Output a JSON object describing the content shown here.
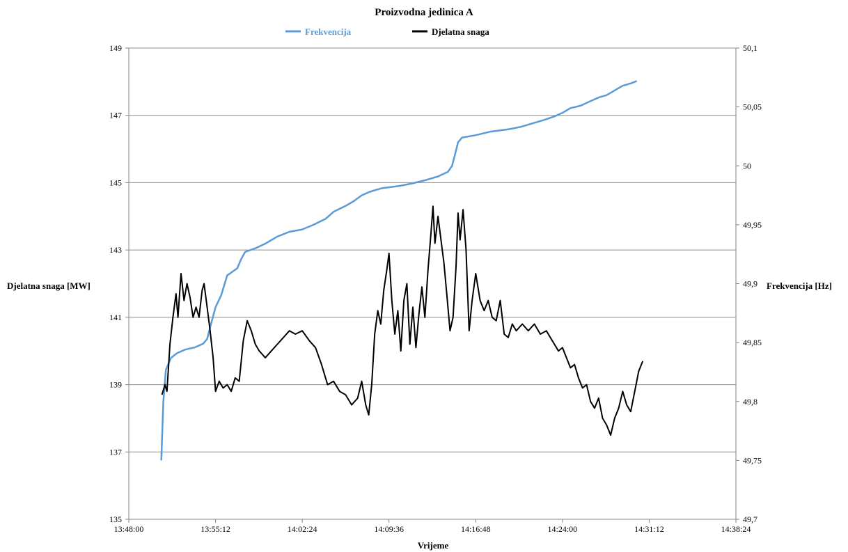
{
  "chart_data": {
    "type": "line",
    "title": "Proizvodna jedinica A",
    "xlabel": "Vrijeme",
    "ylabel_left": "Djelatna snaga [MW]",
    "ylabel_right": "Frekvencija [Hz]",
    "x_ticks": [
      "13:48:00",
      "13:55:12",
      "14:02:24",
      "14:09:36",
      "14:16:48",
      "14:24:00",
      "14:31:12",
      "14:38:24"
    ],
    "x_range": [
      "13:48:00",
      "14:38:24"
    ],
    "y_left_ticks": [
      "135",
      "137",
      "139",
      "141",
      "143",
      "145",
      "147",
      "149"
    ],
    "y_left_range": [
      135,
      149
    ],
    "y_right_ticks": [
      "49,7",
      "49,75",
      "49,8",
      "49,85",
      "49,9",
      "49,95",
      "50",
      "50,05",
      "50,1"
    ],
    "y_right_range": [
      49.7,
      50.1
    ],
    "grid": "horizontal",
    "legend_position": "top",
    "series": [
      {
        "name": "Frekvencija",
        "axis": "right",
        "color": "#5b9bd5",
        "points": [
          [
            "13:50:42",
            49.75
          ],
          [
            "13:50:52",
            49.8
          ],
          [
            "13:51:05",
            49.827
          ],
          [
            "13:51:30",
            49.837
          ],
          [
            "13:52:00",
            49.841
          ],
          [
            "13:52:40",
            49.844
          ],
          [
            "13:53:30",
            49.846
          ],
          [
            "13:54:10",
            49.849
          ],
          [
            "13:54:30",
            49.853
          ],
          [
            "13:54:50",
            49.866
          ],
          [
            "13:55:12",
            49.88
          ],
          [
            "13:55:40",
            49.89
          ],
          [
            "13:56:10",
            49.907
          ],
          [
            "13:57:00",
            49.913
          ],
          [
            "13:57:20",
            49.921
          ],
          [
            "13:57:40",
            49.927
          ],
          [
            "13:58:30",
            49.93
          ],
          [
            "13:59:20",
            49.934
          ],
          [
            "14:00:20",
            49.94
          ],
          [
            "14:01:20",
            49.944
          ],
          [
            "14:02:24",
            49.946
          ],
          [
            "14:03:20",
            49.95
          ],
          [
            "14:04:20",
            49.955
          ],
          [
            "14:05:00",
            49.961
          ],
          [
            "14:06:00",
            49.966
          ],
          [
            "14:06:40",
            49.97
          ],
          [
            "14:07:20",
            49.975
          ],
          [
            "14:08:00",
            49.978
          ],
          [
            "14:09:00",
            49.981
          ],
          [
            "14:10:30",
            49.983
          ],
          [
            "14:11:30",
            49.985
          ],
          [
            "14:12:40",
            49.988
          ],
          [
            "14:13:40",
            49.991
          ],
          [
            "14:14:30",
            49.995
          ],
          [
            "14:14:50",
            50.0
          ],
          [
            "14:15:10",
            50.013
          ],
          [
            "14:15:20",
            50.02
          ],
          [
            "14:15:40",
            50.024
          ],
          [
            "14:16:48",
            50.026
          ],
          [
            "14:18:00",
            50.029
          ],
          [
            "14:19:30",
            50.031
          ],
          [
            "14:20:30",
            50.033
          ],
          [
            "14:21:30",
            50.036
          ],
          [
            "14:22:30",
            50.039
          ],
          [
            "14:23:20",
            50.042
          ],
          [
            "14:24:00",
            50.045
          ],
          [
            "14:24:40",
            50.049
          ],
          [
            "14:25:30",
            50.051
          ],
          [
            "14:26:20",
            50.055
          ],
          [
            "14:27:00",
            50.058
          ],
          [
            "14:27:40",
            50.06
          ],
          [
            "14:28:20",
            50.064
          ],
          [
            "14:29:00",
            50.068
          ],
          [
            "14:29:40",
            50.07
          ],
          [
            "14:30:10",
            50.072
          ]
        ]
      },
      {
        "name": "Djelatna snaga",
        "axis": "left",
        "color": "#000000",
        "points": [
          [
            "13:50:45",
            138.7
          ],
          [
            "13:51:00",
            139.0
          ],
          [
            "13:51:10",
            138.8
          ],
          [
            "13:51:25",
            140.2
          ],
          [
            "13:51:40",
            141.0
          ],
          [
            "13:51:55",
            141.7
          ],
          [
            "13:52:05",
            141.0
          ],
          [
            "13:52:20",
            142.3
          ],
          [
            "13:52:35",
            141.5
          ],
          [
            "13:52:50",
            142.0
          ],
          [
            "13:53:05",
            141.6
          ],
          [
            "13:53:20",
            141.0
          ],
          [
            "13:53:35",
            141.3
          ],
          [
            "13:53:50",
            141.0
          ],
          [
            "13:54:05",
            141.8
          ],
          [
            "13:54:15",
            142.0
          ],
          [
            "13:54:30",
            141.3
          ],
          [
            "13:54:45",
            140.6
          ],
          [
            "13:55:00",
            139.8
          ],
          [
            "13:55:12",
            138.8
          ],
          [
            "13:55:30",
            139.1
          ],
          [
            "13:55:50",
            138.9
          ],
          [
            "13:56:10",
            139.0
          ],
          [
            "13:56:30",
            138.8
          ],
          [
            "13:56:50",
            139.2
          ],
          [
            "13:57:10",
            139.1
          ],
          [
            "13:57:30",
            140.3
          ],
          [
            "13:57:50",
            140.9
          ],
          [
            "13:58:10",
            140.6
          ],
          [
            "13:58:30",
            140.2
          ],
          [
            "13:58:50",
            140.0
          ],
          [
            "13:59:20",
            139.8
          ],
          [
            "13:59:50",
            140.0
          ],
          [
            "14:00:20",
            140.2
          ],
          [
            "14:00:50",
            140.4
          ],
          [
            "14:01:20",
            140.6
          ],
          [
            "14:01:50",
            140.5
          ],
          [
            "14:02:24",
            140.6
          ],
          [
            "14:03:00",
            140.3
          ],
          [
            "14:03:30",
            140.1
          ],
          [
            "14:04:00",
            139.6
          ],
          [
            "14:04:30",
            139.0
          ],
          [
            "14:05:00",
            139.1
          ],
          [
            "14:05:30",
            138.8
          ],
          [
            "14:06:00",
            138.7
          ],
          [
            "14:06:30",
            138.4
          ],
          [
            "14:07:00",
            138.6
          ],
          [
            "14:07:20",
            139.1
          ],
          [
            "14:07:40",
            138.4
          ],
          [
            "14:07:55",
            138.1
          ],
          [
            "14:08:10",
            139.0
          ],
          [
            "14:08:25",
            140.5
          ],
          [
            "14:08:40",
            141.2
          ],
          [
            "14:08:55",
            140.8
          ],
          [
            "14:09:10",
            141.8
          ],
          [
            "14:09:25",
            142.4
          ],
          [
            "14:09:36",
            142.9
          ],
          [
            "14:09:50",
            141.5
          ],
          [
            "14:10:05",
            140.5
          ],
          [
            "14:10:20",
            141.2
          ],
          [
            "14:10:35",
            140.0
          ],
          [
            "14:10:50",
            141.5
          ],
          [
            "14:11:05",
            142.0
          ],
          [
            "14:11:20",
            140.2
          ],
          [
            "14:11:35",
            141.3
          ],
          [
            "14:11:50",
            140.1
          ],
          [
            "14:12:05",
            141.1
          ],
          [
            "14:12:20",
            141.9
          ],
          [
            "14:12:35",
            141.0
          ],
          [
            "14:12:50",
            142.4
          ],
          [
            "14:13:05",
            143.5
          ],
          [
            "14:13:15",
            144.3
          ],
          [
            "14:13:25",
            143.2
          ],
          [
            "14:13:40",
            144.0
          ],
          [
            "14:13:55",
            143.3
          ],
          [
            "14:14:10",
            142.6
          ],
          [
            "14:14:25",
            141.6
          ],
          [
            "14:14:40",
            140.6
          ],
          [
            "14:14:55",
            141.0
          ],
          [
            "14:15:10",
            142.5
          ],
          [
            "14:15:20",
            144.1
          ],
          [
            "14:15:30",
            143.3
          ],
          [
            "14:15:45",
            144.2
          ],
          [
            "14:16:00",
            143.0
          ],
          [
            "14:16:15",
            140.6
          ],
          [
            "14:16:30",
            141.5
          ],
          [
            "14:16:48",
            142.3
          ],
          [
            "14:17:10",
            141.5
          ],
          [
            "14:17:30",
            141.2
          ],
          [
            "14:17:50",
            141.5
          ],
          [
            "14:18:10",
            141.0
          ],
          [
            "14:18:30",
            140.9
          ],
          [
            "14:18:50",
            141.5
          ],
          [
            "14:19:10",
            140.5
          ],
          [
            "14:19:30",
            140.4
          ],
          [
            "14:19:50",
            140.8
          ],
          [
            "14:20:10",
            140.6
          ],
          [
            "14:20:40",
            140.8
          ],
          [
            "14:21:10",
            140.6
          ],
          [
            "14:21:40",
            140.8
          ],
          [
            "14:22:10",
            140.5
          ],
          [
            "14:22:40",
            140.6
          ],
          [
            "14:23:10",
            140.3
          ],
          [
            "14:23:40",
            140.0
          ],
          [
            "14:24:00",
            140.1
          ],
          [
            "14:24:20",
            139.8
          ],
          [
            "14:24:40",
            139.5
          ],
          [
            "14:25:00",
            139.6
          ],
          [
            "14:25:20",
            139.2
          ],
          [
            "14:25:40",
            138.9
          ],
          [
            "14:26:00",
            139.0
          ],
          [
            "14:26:20",
            138.5
          ],
          [
            "14:26:40",
            138.3
          ],
          [
            "14:27:00",
            138.6
          ],
          [
            "14:27:20",
            138.0
          ],
          [
            "14:27:40",
            137.8
          ],
          [
            "14:28:00",
            137.5
          ],
          [
            "14:28:20",
            138.0
          ],
          [
            "14:28:40",
            138.3
          ],
          [
            "14:29:00",
            138.8
          ],
          [
            "14:29:20",
            138.4
          ],
          [
            "14:29:40",
            138.2
          ],
          [
            "14:30:00",
            138.8
          ],
          [
            "14:30:20",
            139.4
          ],
          [
            "14:30:40",
            139.7
          ]
        ]
      }
    ]
  }
}
